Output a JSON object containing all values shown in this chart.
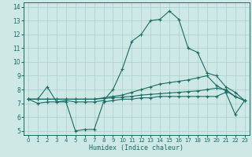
{
  "xlabel": "Humidex (Indice chaleur)",
  "bg_color": "#cde8e5",
  "grid_color": "#aacfcc",
  "line_color": "#1b6b65",
  "xlim": [
    -0.5,
    23.5
  ],
  "ylim": [
    4.7,
    14.3
  ],
  "xticks": [
    0,
    1,
    2,
    3,
    4,
    5,
    6,
    7,
    8,
    9,
    10,
    11,
    12,
    13,
    14,
    15,
    16,
    17,
    18,
    19,
    20,
    21,
    22,
    23
  ],
  "yticks": [
    5,
    6,
    7,
    8,
    9,
    10,
    11,
    12,
    13,
    14
  ],
  "series": [
    {
      "x": [
        0,
        1,
        2,
        3,
        4,
        5,
        6,
        7,
        8,
        9,
        10,
        11,
        12,
        13,
        14,
        15,
        16,
        17,
        18,
        19,
        20,
        21,
        22,
        23
      ],
      "y": [
        7.3,
        7.3,
        8.2,
        7.1,
        7.2,
        7.1,
        7.1,
        7.1,
        7.2,
        8.0,
        9.5,
        11.5,
        12.0,
        13.0,
        13.1,
        13.7,
        13.1,
        11.0,
        10.7,
        9.2,
        9.0,
        8.2,
        7.8,
        7.2
      ]
    },
    {
      "x": [
        0,
        1,
        2,
        3,
        4,
        5,
        6,
        7,
        8,
        9,
        10,
        11,
        12,
        13,
        14,
        15,
        16,
        17,
        18,
        19,
        20,
        21,
        22,
        23
      ],
      "y": [
        7.3,
        7.0,
        7.1,
        7.1,
        7.1,
        5.0,
        5.1,
        5.1,
        7.1,
        7.2,
        7.3,
        7.3,
        7.4,
        7.4,
        7.5,
        7.5,
        7.5,
        7.5,
        7.5,
        7.5,
        7.5,
        7.8,
        6.2,
        7.2
      ]
    },
    {
      "x": [
        0,
        1,
        2,
        3,
        4,
        5,
        6,
        7,
        8,
        9,
        10,
        11,
        12,
        13,
        14,
        15,
        16,
        17,
        18,
        19,
        20,
        21,
        22,
        23
      ],
      "y": [
        7.3,
        7.3,
        7.3,
        7.3,
        7.3,
        7.3,
        7.3,
        7.3,
        7.4,
        7.5,
        7.6,
        7.8,
        8.0,
        8.2,
        8.4,
        8.5,
        8.6,
        8.7,
        8.85,
        9.0,
        8.3,
        7.9,
        7.5,
        7.2
      ]
    },
    {
      "x": [
        0,
        1,
        2,
        3,
        4,
        5,
        6,
        7,
        8,
        9,
        10,
        11,
        12,
        13,
        14,
        15,
        16,
        17,
        18,
        19,
        20,
        21,
        22,
        23
      ],
      "y": [
        7.3,
        7.3,
        7.3,
        7.3,
        7.3,
        7.3,
        7.3,
        7.3,
        7.35,
        7.4,
        7.45,
        7.5,
        7.6,
        7.65,
        7.7,
        7.75,
        7.8,
        7.85,
        7.9,
        8.0,
        8.1,
        8.0,
        7.5,
        7.2
      ]
    }
  ]
}
